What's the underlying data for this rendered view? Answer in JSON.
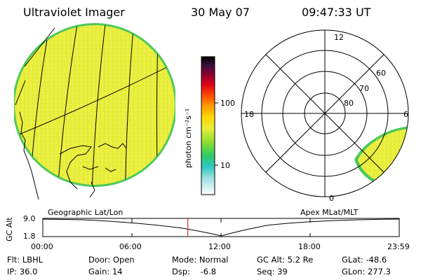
{
  "header": {
    "title": "Ultraviolet Imager",
    "date": "30 May 07",
    "time": "09:47:33 UT"
  },
  "colorbar": {
    "unit": "photon cm⁻²s⁻¹",
    "tick_100": "100",
    "tick_10": "10",
    "scale": "log"
  },
  "polar": {
    "lt_top": "12",
    "lt_left": "18",
    "lt_right": "6",
    "lt_bottom": "0",
    "lat_60": "60",
    "lat_70": "70",
    "lat_80": "80"
  },
  "panels": {
    "left_label": "Geographic Lat/Lon",
    "right_label": "Apex MLat/MLT"
  },
  "altitude_plot": {
    "ylabel": "GC Alt",
    "y_top": "9.0",
    "y_bottom": "1.8",
    "x_ticks": [
      "00:00",
      "06:00",
      "12:00",
      "18:00",
      "23:59"
    ],
    "current_time_fraction": 0.407
  },
  "info": {
    "flt": "Flt: LBHL",
    "ip": "IP: 36.0",
    "door": "Door: Open",
    "gain": "Gain: 14",
    "mode": "Mode: Normal",
    "dsp": "Dsp:    -6.8",
    "gcalt": "GC Alt: 5.2 Re",
    "seq": "Seq: 39",
    "glat": "GLat: -48.6",
    "glon": "GLon: 277.3"
  },
  "colors": {
    "image_fill": "#e8ee3a",
    "edge": "#4fc85a",
    "marker": "#e00000"
  }
}
